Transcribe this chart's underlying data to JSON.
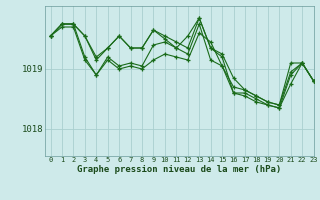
{
  "title": "Graphe pression niveau de la mer (hPa)",
  "bg_color": "#ceeaea",
  "grid_color": "#aacfcf",
  "line_color": "#1a6b1a",
  "xlim": [
    -0.5,
    23
  ],
  "ylim": [
    1017.55,
    1020.05
  ],
  "yticks": [
    1018,
    1019
  ],
  "xticks": [
    0,
    1,
    2,
    3,
    4,
    5,
    6,
    7,
    8,
    9,
    10,
    11,
    12,
    13,
    14,
    15,
    16,
    17,
    18,
    19,
    20,
    21,
    22,
    23
  ],
  "series": [
    [
      1019.55,
      1019.75,
      1019.75,
      1019.55,
      1019.15,
      1019.35,
      1019.55,
      1019.35,
      1019.35,
      1019.65,
      1019.55,
      1019.45,
      1019.35,
      1019.85,
      1019.35,
      1019.25,
      1018.85,
      1018.65,
      1018.55,
      1018.45,
      1018.4,
      1019.1,
      1019.1,
      1018.8
    ],
    [
      1019.55,
      1019.75,
      1019.75,
      1019.2,
      1018.9,
      1019.2,
      1019.05,
      1019.1,
      1019.05,
      1019.4,
      1019.45,
      1019.35,
      1019.55,
      1019.85,
      1019.35,
      1019.2,
      1018.6,
      1018.6,
      1018.5,
      1018.4,
      1018.35,
      1018.75,
      1019.1,
      1018.8
    ],
    [
      1019.55,
      1019.7,
      1019.7,
      1019.15,
      1018.9,
      1019.15,
      1019.0,
      1019.05,
      1019.0,
      1019.15,
      1019.25,
      1019.2,
      1019.15,
      1019.6,
      1019.45,
      1019.05,
      1018.6,
      1018.55,
      1018.45,
      1018.4,
      1018.35,
      1018.9,
      1019.1,
      1018.8
    ],
    [
      1019.55,
      1019.75,
      1019.75,
      1019.55,
      1019.2,
      1019.35,
      1019.55,
      1019.35,
      1019.35,
      1019.65,
      1019.5,
      1019.35,
      1019.25,
      1019.75,
      1019.15,
      1019.05,
      1018.7,
      1018.65,
      1018.55,
      1018.45,
      1018.4,
      1018.95,
      1019.1,
      1018.8
    ]
  ]
}
